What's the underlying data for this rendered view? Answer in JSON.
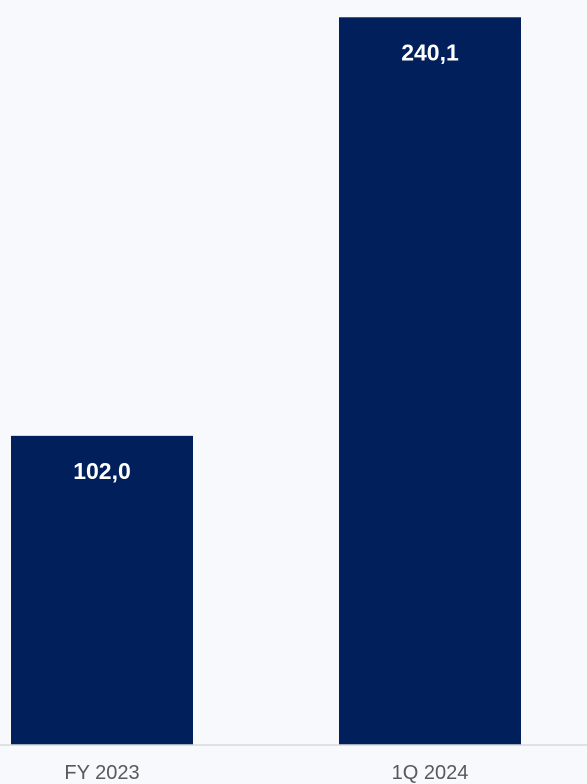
{
  "chart_data": {
    "type": "bar",
    "categories": [
      "FY 2023",
      "1Q 2024"
    ],
    "values": [
      102.0,
      240.1
    ],
    "value_labels": [
      "102,0",
      "240,1"
    ],
    "title": "",
    "xlabel": "",
    "ylabel": "",
    "ylim": [
      0,
      242.5
    ],
    "grid": false,
    "legend": "none",
    "colors": {
      "bar": "#001f5b",
      "value_label": "#ffffff",
      "tick_label": "#595959",
      "axis_line": "#d9d9d9",
      "background": "#f7f9fd"
    }
  }
}
